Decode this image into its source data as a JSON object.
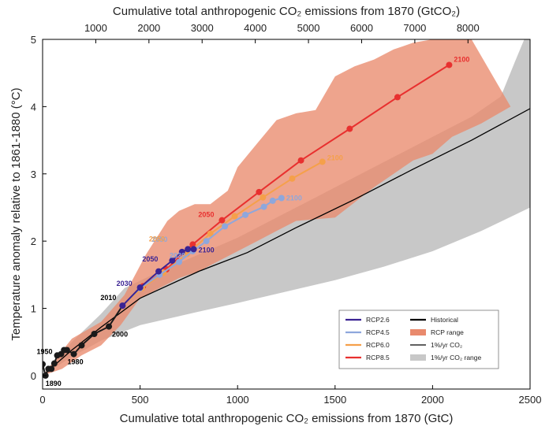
{
  "chart_data": {
    "type": "line",
    "xlabel": "Cumulative total anthropogenic CO₂ emissions from 1870 (GtC)",
    "x2label": "Cumulative total anthropogenic CO₂ emissions from 1870 (GtCO₂)",
    "ylabel": "Temperature anomaly relative to 1861-1880 (°C)",
    "xlim": [
      0,
      2500
    ],
    "ylim": [
      -0.2,
      5
    ],
    "x_ticks": [
      "0",
      "500",
      "1000",
      "1500",
      "2000",
      "2500"
    ],
    "x_tick_values": [
      0,
      500,
      1000,
      1500,
      2000,
      2500
    ],
    "y_ticks": [
      "0",
      "1",
      "2",
      "3",
      "4",
      "5"
    ],
    "y_tick_values": [
      0,
      1,
      2,
      3,
      4,
      5
    ],
    "x2_ticks": [
      "1000",
      "2000",
      "3000",
      "4000",
      "5000",
      "6000",
      "7000",
      "8000"
    ],
    "x2_tick_values_gtco2": [
      1000,
      2000,
      3000,
      4000,
      5000,
      6000,
      7000,
      8000
    ],
    "gtco2_per_gtc": 3.667,
    "legend": {
      "position": "bottom-right",
      "entries": [
        {
          "label": "RCP2.6",
          "kind": "line",
          "color": "#3b2393"
        },
        {
          "label": "Historical",
          "kind": "line",
          "color": "#000000"
        },
        {
          "label": "RCP4.5",
          "kind": "line",
          "color": "#8ea7dc"
        },
        {
          "label": "RCP range",
          "kind": "patch",
          "color": "#e98a6d"
        },
        {
          "label": "RCP6.0",
          "kind": "line",
          "color": "#f5a04a"
        },
        {
          "label": "1%/yr CO₂",
          "kind": "thin-line",
          "color": "#000000"
        },
        {
          "label": "RCP8.5",
          "kind": "line",
          "color": "#e8302f"
        },
        {
          "label": "1%/yr CO₂ range",
          "kind": "patch",
          "color": "#c8c8c8"
        }
      ]
    },
    "series": [
      {
        "name": "Historical",
        "color": "#1a1a1a",
        "x": [
          0,
          15,
          30,
          45,
          60,
          75,
          95,
          110,
          125,
          160,
          200,
          265,
          340,
          410
        ],
        "y": [
          0.17,
          0.0,
          0.1,
          0.1,
          0.18,
          0.3,
          0.32,
          0.38,
          0.38,
          0.32,
          0.45,
          0.62,
          0.73,
          1.04
        ],
        "year_labels": [
          {
            "x": 15,
            "y": 0.0,
            "label": "1890"
          },
          {
            "x": 75,
            "y": 0.3,
            "label": "1950"
          },
          {
            "x": 160,
            "y": 0.32,
            "label": "1980"
          },
          {
            "x": 340,
            "y": 0.73,
            "label": "2000"
          },
          {
            "x": 410,
            "y": 1.04,
            "label": "2010"
          }
        ]
      },
      {
        "name": "RCP2.6",
        "color": "#3b2393",
        "x": [
          410,
          500,
          595,
          665,
          715,
          745,
          775
        ],
        "y": [
          1.04,
          1.31,
          1.55,
          1.71,
          1.84,
          1.88,
          1.88
        ],
        "year_labels": [
          {
            "x": 500,
            "y": 1.31,
            "label": "2030"
          },
          {
            "x": 665,
            "y": 1.71,
            "label": "2050"
          },
          {
            "x": 775,
            "y": 1.88,
            "label": "2100"
          }
        ]
      },
      {
        "name": "RCP4.5",
        "color": "#8ea7dc",
        "x": [
          410,
          500,
          600,
          700,
          770,
          840,
          935,
          1040,
          1135,
          1180,
          1225
        ],
        "y": [
          1.04,
          1.3,
          1.5,
          1.69,
          1.85,
          2.0,
          2.22,
          2.39,
          2.51,
          2.6,
          2.64
        ],
        "year_labels": [
          {
            "x": 700,
            "y": 1.69,
            "label": "2030"
          },
          {
            "x": 770,
            "y": 1.85,
            "label": "2050"
          },
          {
            "x": 1225,
            "y": 2.64,
            "label": "2100"
          }
        ]
      },
      {
        "name": "RCP6.0",
        "color": "#f5a04a",
        "x": [
          410,
          510,
          620,
          740,
          860,
          985,
          1130,
          1280,
          1435
        ],
        "y": [
          1.04,
          1.3,
          1.53,
          1.81,
          2.11,
          2.37,
          2.65,
          2.93,
          3.18
        ],
        "year_labels": [
          {
            "x": 740,
            "y": 1.81,
            "label": "2050"
          },
          {
            "x": 1435,
            "y": 3.18,
            "label": "2100"
          }
        ]
      },
      {
        "name": "RCP8.5",
        "color": "#e8302f",
        "x": [
          410,
          515,
          635,
          770,
          920,
          1110,
          1325,
          1575,
          1820,
          2085
        ],
        "y": [
          1.04,
          1.33,
          1.58,
          1.95,
          2.31,
          2.73,
          3.2,
          3.67,
          4.14,
          4.62
        ],
        "year_labels": [
          {
            "x": 920,
            "y": 2.31,
            "label": "2050"
          },
          {
            "x": 2085,
            "y": 4.62,
            "label": "2100"
          }
        ]
      },
      {
        "name": "1%/yr CO₂",
        "color": "#000000",
        "x": [
          0,
          150,
          300,
          500,
          800,
          1050,
          1300,
          1600,
          1900,
          2200,
          2500
        ],
        "y": [
          0.0,
          0.38,
          0.72,
          1.15,
          1.55,
          1.83,
          2.2,
          2.62,
          3.07,
          3.5,
          3.97
        ]
      }
    ],
    "ranges": [
      {
        "name": "1%/yr CO₂ range",
        "color": "#c8c8c8",
        "upper": [
          [
            0,
            0
          ],
          [
            150,
            0.5
          ],
          [
            300,
            0.92
          ],
          [
            420,
            1.3
          ],
          [
            600,
            1.55
          ],
          [
            800,
            1.8
          ],
          [
            1000,
            2.05
          ],
          [
            1200,
            2.35
          ],
          [
            1400,
            2.65
          ],
          [
            1600,
            2.95
          ],
          [
            1800,
            3.25
          ],
          [
            2000,
            3.55
          ],
          [
            2200,
            3.85
          ],
          [
            2350,
            4.15
          ],
          [
            2420,
            4.65
          ],
          [
            2470,
            5.0
          ],
          [
            2500,
            5.0
          ]
        ],
        "lower": [
          [
            0,
            0
          ],
          [
            150,
            0.28
          ],
          [
            300,
            0.52
          ],
          [
            500,
            0.75
          ],
          [
            800,
            0.95
          ],
          [
            1000,
            1.08
          ],
          [
            1250,
            1.25
          ],
          [
            1500,
            1.42
          ],
          [
            1750,
            1.62
          ],
          [
            2000,
            1.85
          ],
          [
            2250,
            2.15
          ],
          [
            2500,
            2.5
          ]
        ]
      },
      {
        "name": "RCP range",
        "color": "#e98a6d",
        "upper": [
          [
            0,
            0
          ],
          [
            150,
            0.55
          ],
          [
            300,
            0.8
          ],
          [
            420,
            1.2
          ],
          [
            530,
            1.8
          ],
          [
            640,
            2.3
          ],
          [
            700,
            2.45
          ],
          [
            780,
            2.55
          ],
          [
            860,
            2.55
          ],
          [
            950,
            2.75
          ],
          [
            1000,
            3.1
          ],
          [
            1100,
            3.45
          ],
          [
            1200,
            3.8
          ],
          [
            1300,
            3.9
          ],
          [
            1400,
            3.95
          ],
          [
            1500,
            4.45
          ],
          [
            1600,
            4.6
          ],
          [
            1700,
            4.7
          ],
          [
            1800,
            4.85
          ],
          [
            1900,
            4.95
          ],
          [
            2000,
            5.0
          ],
          [
            2200,
            5.0
          ]
        ],
        "lower": [
          [
            2400,
            4.0
          ],
          [
            2250,
            3.75
          ],
          [
            2100,
            3.55
          ],
          [
            2000,
            3.3
          ],
          [
            1900,
            3.2
          ],
          [
            1700,
            2.8
          ],
          [
            1500,
            2.35
          ],
          [
            1300,
            2.3
          ],
          [
            1200,
            2.15
          ],
          [
            1100,
            2.0
          ],
          [
            1000,
            1.85
          ],
          [
            900,
            1.7
          ],
          [
            800,
            1.55
          ],
          [
            700,
            1.45
          ],
          [
            600,
            1.3
          ],
          [
            500,
            1.15
          ],
          [
            400,
            0.75
          ],
          [
            300,
            0.45
          ],
          [
            200,
            0.3
          ],
          [
            100,
            0.1
          ],
          [
            0,
            0
          ]
        ]
      }
    ]
  }
}
